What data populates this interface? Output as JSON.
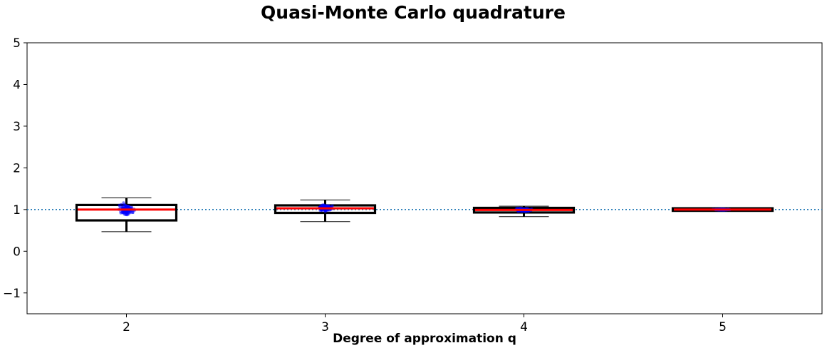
{
  "chart_data": {
    "type": "box",
    "title": "Quasi-Monte Carlo quadrature",
    "xlabel": "Degree of approximation q",
    "ylabel": "",
    "categories": [
      "2",
      "3",
      "4",
      "5"
    ],
    "ylim": [
      -1.5,
      5
    ],
    "yticks": [
      -1,
      0,
      1,
      2,
      3,
      4,
      5
    ],
    "ytick_labels": [
      "−1",
      "0",
      "1",
      "2",
      "3",
      "4",
      "5"
    ],
    "reference_line": 1.0,
    "grid": false,
    "boxes": [
      {
        "category": "2",
        "whisker_low": 0.47,
        "q1": 0.74,
        "median": 1.0,
        "q3": 1.11,
        "whisker_high": 1.28,
        "points_low": 0.5,
        "points_high": 1.28
      },
      {
        "category": "3",
        "whisker_low": 0.71,
        "q1": 0.92,
        "median": 1.03,
        "q3": 1.1,
        "whisker_high": 1.23,
        "points_low": 0.71,
        "points_high": 1.23
      },
      {
        "category": "4",
        "whisker_low": 0.83,
        "q1": 0.93,
        "median": 0.99,
        "q3": 1.04,
        "whisker_high": 1.08,
        "points_low": 0.83,
        "points_high": 1.08
      },
      {
        "category": "5",
        "whisker_low": 0.96,
        "q1": 0.97,
        "median": 1.0,
        "q3": 1.03,
        "whisker_high": 1.04,
        "points_low": 0.96,
        "points_high": 1.04
      }
    ],
    "colors": {
      "box": "#000000",
      "median": "#ff0000",
      "points": "#0000ff",
      "reference_line": "#1f77b4"
    }
  }
}
